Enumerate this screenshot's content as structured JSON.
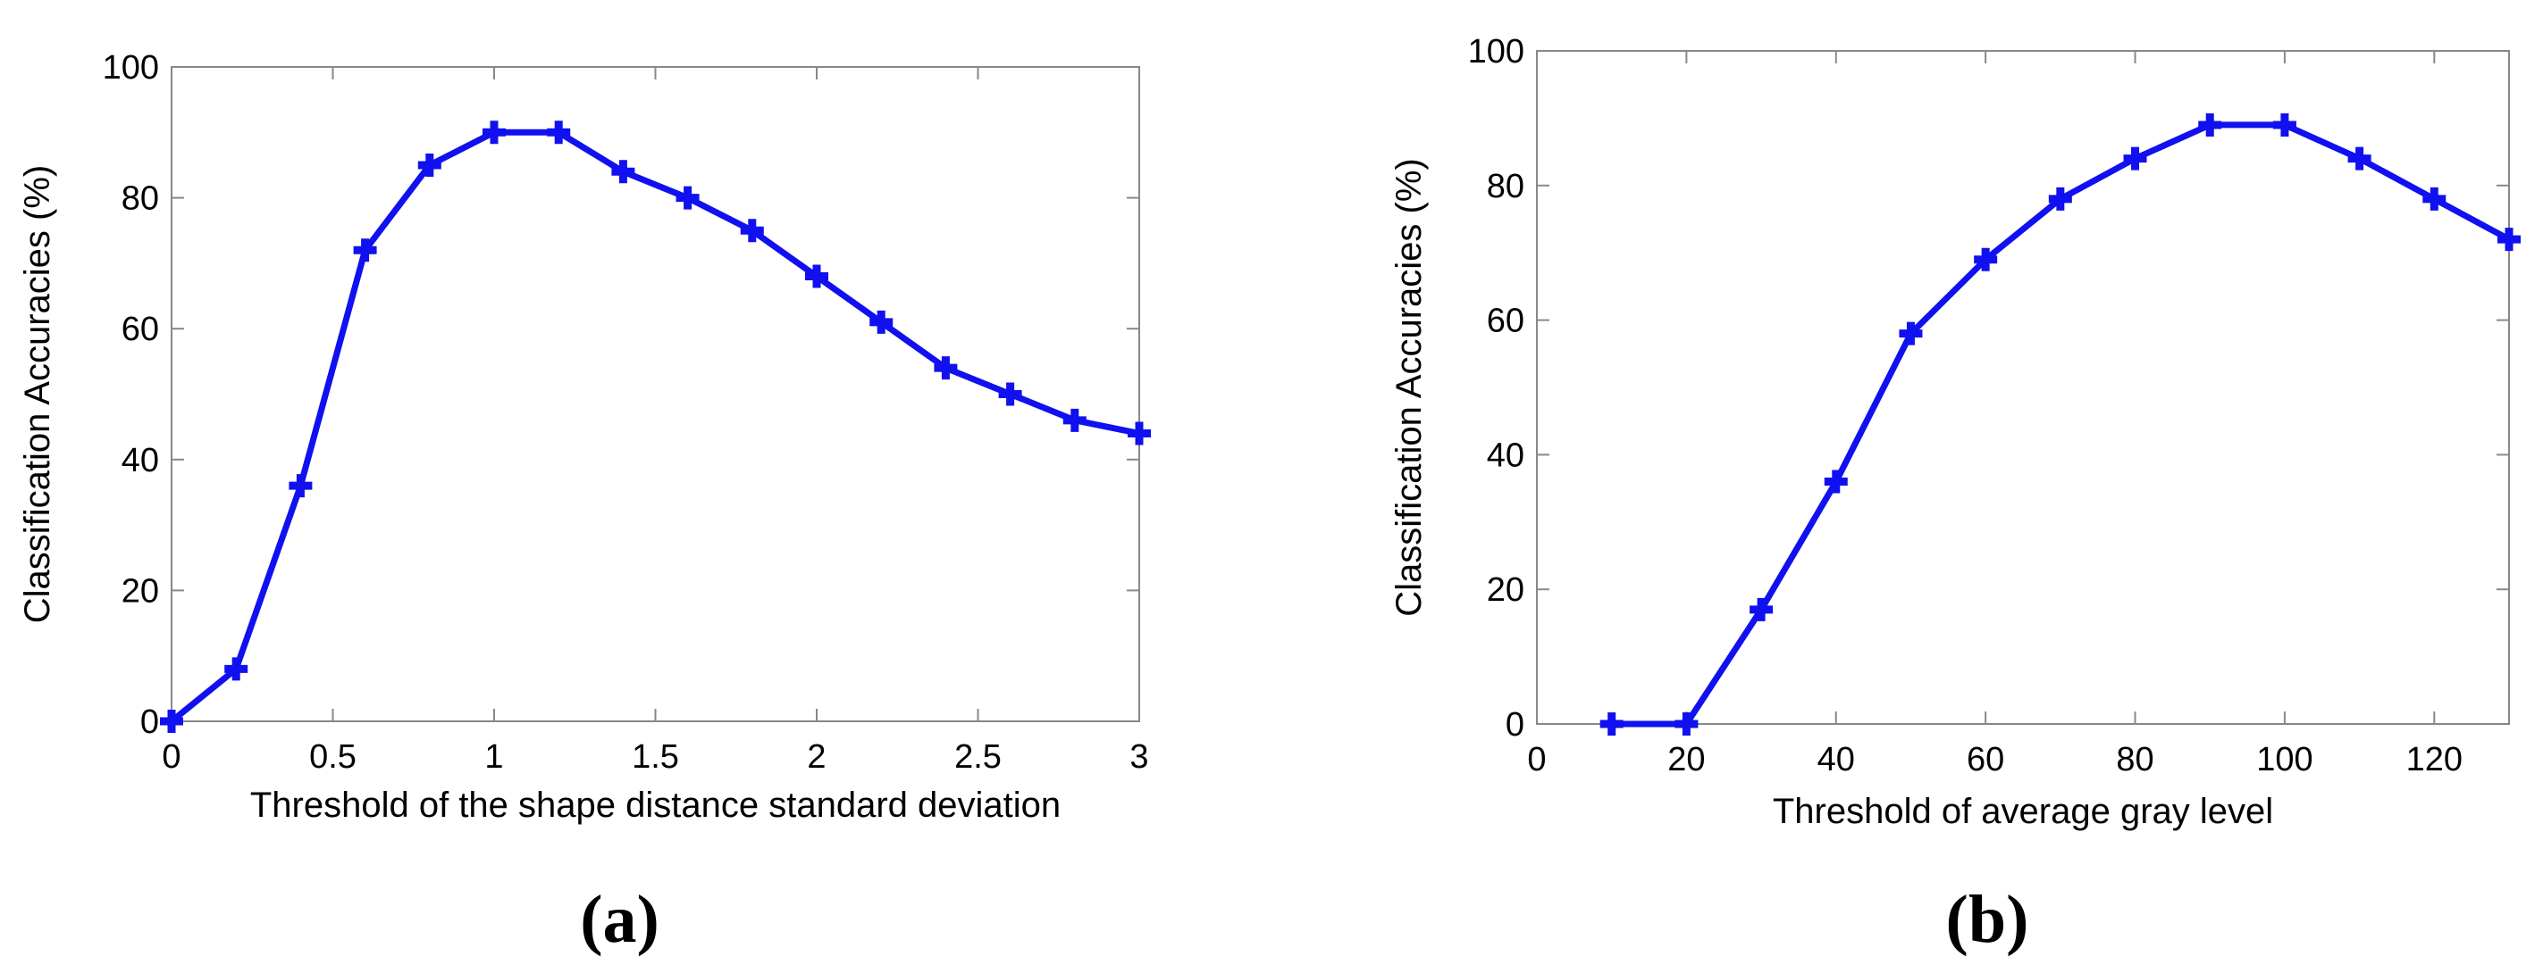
{
  "chart_data": [
    {
      "type": "line",
      "panel_label": "(a)",
      "xlabel": "Threshold of the shape distance standard deviation",
      "ylabel": "Classification Accuracies (%)",
      "xlim": [
        0,
        3
      ],
      "ylim": [
        0,
        100
      ],
      "xticks": [
        0,
        0.5,
        1,
        1.5,
        2,
        2.5,
        3
      ],
      "xtick_labels": [
        "0",
        "0.5",
        "1",
        "1.5",
        "2",
        "2.5",
        "3"
      ],
      "yticks": [
        0,
        20,
        40,
        60,
        80,
        100
      ],
      "ytick_labels": [
        "0",
        "20",
        "40",
        "60",
        "80",
        "100"
      ],
      "grid": false,
      "series": [
        {
          "color": "#1010f0",
          "marker": "plus",
          "x": [
            0,
            0.2,
            0.4,
            0.6,
            0.8,
            1.0,
            1.2,
            1.4,
            1.6,
            1.8,
            2.0,
            2.2,
            2.4,
            2.6,
            2.8,
            3.0
          ],
          "y": [
            0,
            8,
            36,
            72,
            85,
            90,
            90,
            84,
            80,
            75,
            68,
            61,
            54,
            50,
            46,
            44
          ]
        }
      ]
    },
    {
      "type": "line",
      "panel_label": "(b)",
      "xlabel": "Threshold of average gray level",
      "ylabel": "Classification Accuracies (%)",
      "xlim": [
        0,
        130
      ],
      "ylim": [
        0,
        100
      ],
      "xticks": [
        0,
        20,
        40,
        60,
        80,
        100,
        120
      ],
      "xtick_labels": [
        "0",
        "20",
        "40",
        "60",
        "80",
        "100",
        "120"
      ],
      "yticks": [
        0,
        20,
        40,
        60,
        80,
        100
      ],
      "ytick_labels": [
        "0",
        "20",
        "40",
        "60",
        "80",
        "100"
      ],
      "grid": false,
      "series": [
        {
          "color": "#1010f0",
          "marker": "plus",
          "x": [
            10,
            20,
            30,
            40,
            50,
            60,
            70,
            80,
            90,
            100,
            110,
            120,
            130
          ],
          "y": [
            0,
            0,
            17,
            36,
            58,
            69,
            78,
            84,
            89,
            89,
            84,
            78,
            72
          ]
        }
      ]
    }
  ]
}
